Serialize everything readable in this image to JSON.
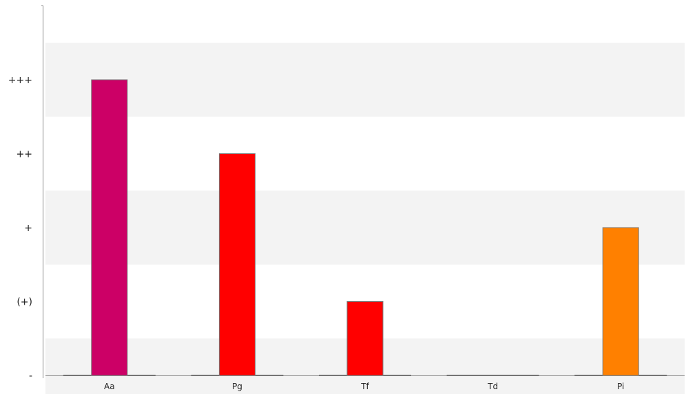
{
  "chart_data": {
    "type": "bar",
    "categories": [
      "Aa",
      "Pg",
      "Tf",
      "Td",
      "Pi"
    ],
    "values": [
      4,
      3,
      1,
      0,
      2
    ],
    "value_labels": [
      "+++",
      "++",
      "(+)",
      "-",
      "+"
    ],
    "bar_colors": [
      "#cc0066",
      "#ff0000",
      "#ff0000",
      "#ff0000",
      "#ff8000"
    ],
    "y_tick_values": [
      0,
      1,
      2,
      3,
      4
    ],
    "y_tick_labels": [
      "-",
      "(+)",
      "+",
      "++",
      "+++"
    ],
    "ylim": [
      0,
      5
    ],
    "grid": "alternating horizontal bands",
    "band_color": "#f3f3f3",
    "axis_color": "#888888",
    "bar_border_color": "#777777"
  }
}
